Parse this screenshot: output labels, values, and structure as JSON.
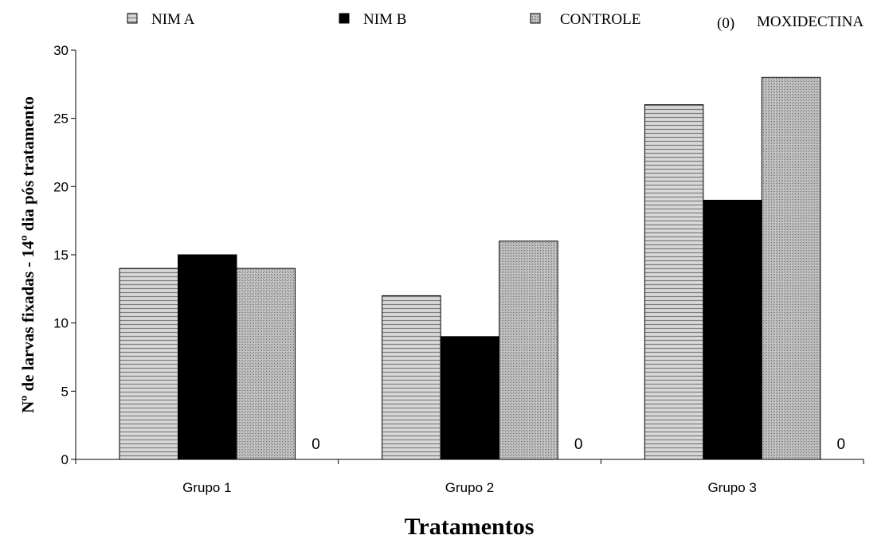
{
  "chart_data": {
    "type": "bar",
    "categories": [
      "Grupo 1",
      "Grupo 2",
      "Grupo 3"
    ],
    "series": [
      {
        "name": "NIM A",
        "values": [
          14,
          12,
          26
        ],
        "pattern": "horizontal-stripes"
      },
      {
        "name": "NIM B",
        "values": [
          15,
          9,
          19
        ],
        "pattern": "solid-black"
      },
      {
        "name": "CONTROLE",
        "values": [
          14,
          16,
          28
        ],
        "pattern": "dotted-grey"
      },
      {
        "name": "MOXIDECTINA",
        "values": [
          0,
          0,
          0
        ]
      }
    ],
    "moxidectina_legend_marker": "(0)",
    "zero_labels": [
      "0",
      "0",
      "0"
    ],
    "xlabel": "Tratamentos",
    "ylabel": "Nº de larvas fixadas - 14º dia pós tratamento",
    "ylim": [
      0,
      30
    ],
    "yticks": [
      0,
      5,
      10,
      15,
      20,
      25,
      30
    ],
    "grid": false,
    "legend_position": "top"
  }
}
